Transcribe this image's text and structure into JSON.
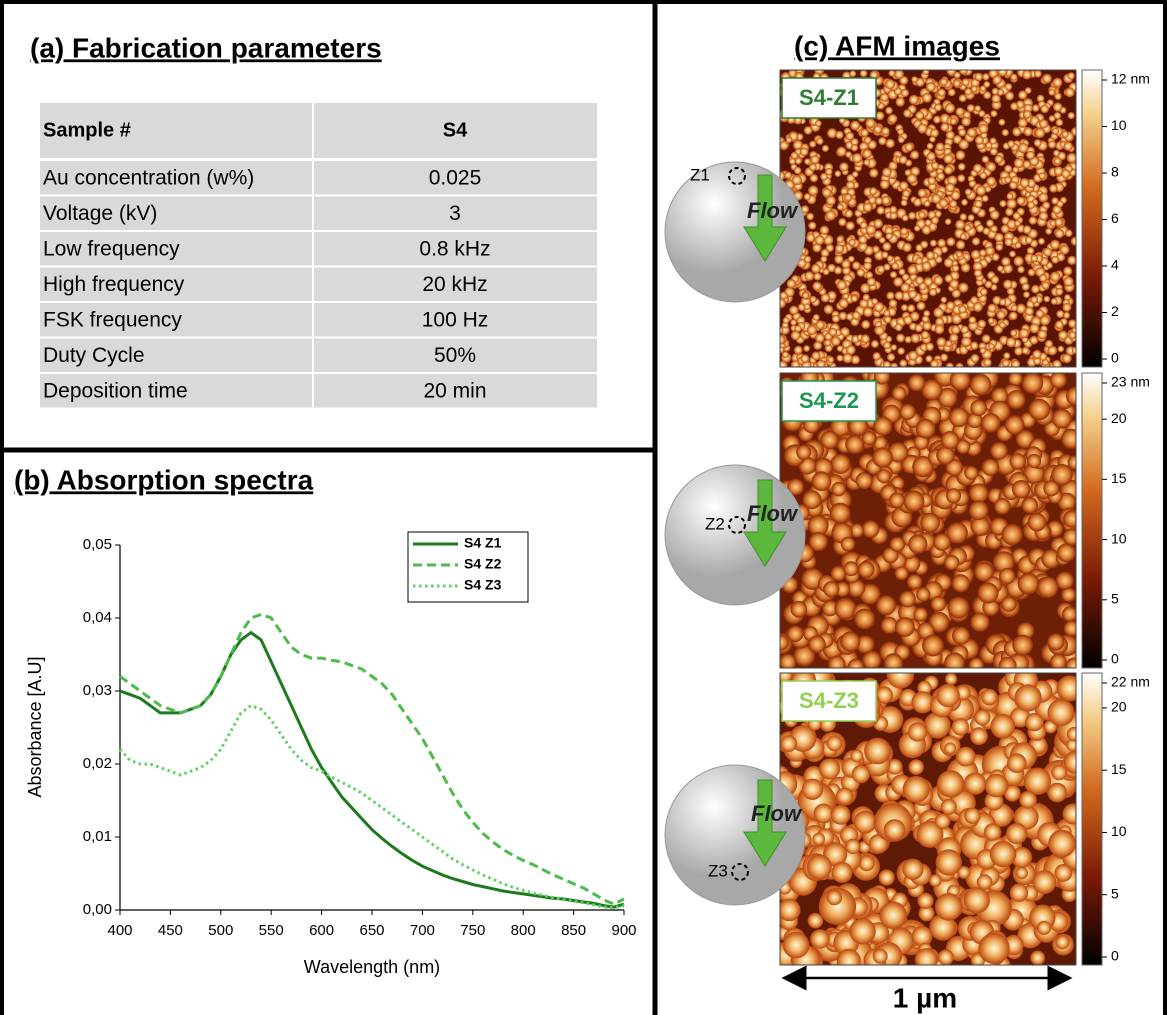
{
  "panel_a": {
    "title": "(a) Fabrication parameters",
    "header": [
      "Sample #",
      "S4"
    ],
    "rows": [
      [
        "Au concentration (w%)",
        "0.025"
      ],
      [
        "Voltage (kV)",
        "3"
      ],
      [
        "Low frequency",
        "0.8 kHz"
      ],
      [
        "High frequency",
        "20 kHz"
      ],
      [
        "FSK frequency",
        "100 Hz"
      ],
      [
        "Duty Cycle",
        "50%"
      ],
      [
        "Deposition time",
        "20 min"
      ]
    ]
  },
  "chart_data": {
    "type": "line",
    "title": "(b) Absorption spectra",
    "x_label": "Wavelength (nm)",
    "y_label": "Absorbance [A.U]",
    "x": [
      400,
      410,
      420,
      430,
      440,
      450,
      460,
      470,
      480,
      490,
      500,
      510,
      520,
      530,
      540,
      550,
      560,
      570,
      580,
      590,
      600,
      610,
      620,
      630,
      640,
      650,
      660,
      670,
      680,
      690,
      700,
      710,
      720,
      730,
      740,
      750,
      760,
      770,
      780,
      790,
      800,
      810,
      820,
      830,
      840,
      850,
      860,
      870,
      880,
      890,
      900
    ],
    "series": [
      {
        "name": "S4 Z1",
        "color": "#1e7a1e",
        "dash": "solid",
        "values": [
          0.03,
          0.0295,
          0.029,
          0.028,
          0.027,
          0.027,
          0.027,
          0.0275,
          0.028,
          0.0295,
          0.032,
          0.035,
          0.037,
          0.038,
          0.037,
          0.034,
          0.031,
          0.028,
          0.025,
          0.022,
          0.0195,
          0.0175,
          0.0155,
          0.014,
          0.0125,
          0.011,
          0.0098,
          0.0087,
          0.0077,
          0.0068,
          0.006,
          0.0054,
          0.0048,
          0.0043,
          0.0039,
          0.0035,
          0.0032,
          0.0029,
          0.0026,
          0.0024,
          0.0022,
          0.002,
          0.0018,
          0.0016,
          0.0015,
          0.0013,
          0.0011,
          0.0009,
          0.0006,
          0.0004,
          0.0008
        ]
      },
      {
        "name": "S4 Z2",
        "color": "#4cbb4c",
        "dash": "dashed",
        "values": [
          0.032,
          0.031,
          0.03,
          0.029,
          0.028,
          0.0275,
          0.027,
          0.0275,
          0.028,
          0.0295,
          0.032,
          0.035,
          0.038,
          0.04,
          0.0405,
          0.04,
          0.038,
          0.036,
          0.035,
          0.0345,
          0.0345,
          0.0342,
          0.034,
          0.0335,
          0.033,
          0.032,
          0.031,
          0.0295,
          0.0275,
          0.0255,
          0.0235,
          0.021,
          0.0185,
          0.016,
          0.0138,
          0.012,
          0.0105,
          0.0093,
          0.0083,
          0.0075,
          0.0068,
          0.0062,
          0.0055,
          0.0048,
          0.0042,
          0.0036,
          0.003,
          0.0022,
          0.0014,
          0.0008,
          0.0015
        ]
      },
      {
        "name": "S4 Z3",
        "color": "#5fd35f",
        "dash": "dotted",
        "values": [
          0.022,
          0.0205,
          0.02,
          0.02,
          0.0195,
          0.019,
          0.0185,
          0.019,
          0.0195,
          0.0205,
          0.022,
          0.0245,
          0.027,
          0.028,
          0.0275,
          0.026,
          0.024,
          0.022,
          0.0205,
          0.0195,
          0.019,
          0.0182,
          0.0175,
          0.0168,
          0.016,
          0.015,
          0.014,
          0.013,
          0.012,
          0.011,
          0.01,
          0.009,
          0.008,
          0.007,
          0.0062,
          0.0055,
          0.0048,
          0.0042,
          0.0036,
          0.0031,
          0.0027,
          0.0023,
          0.002,
          0.0017,
          0.0014,
          0.0012,
          0.001,
          0.0007,
          0.0004,
          0.0003,
          0.0006
        ]
      }
    ],
    "xlim": [
      400,
      900
    ],
    "xticks": [
      400,
      450,
      500,
      550,
      600,
      650,
      700,
      750,
      800,
      850,
      900
    ],
    "ylim": [
      0,
      0.05
    ],
    "yticks": [
      {
        "value": 0,
        "label": "0,00"
      },
      {
        "value": 0.01,
        "label": "0,01"
      },
      {
        "value": 0.02,
        "label": "0,02"
      },
      {
        "value": 0.03,
        "label": "0,03"
      },
      {
        "value": 0.04,
        "label": "0,04"
      },
      {
        "value": 0.05,
        "label": "0,05"
      }
    ],
    "legend": "upper right"
  },
  "panel_c": {
    "title": "(c) AFM images",
    "images": [
      {
        "label": "S4-Z1",
        "zone": "Z1",
        "flow": "Flow",
        "colorbar": {
          "lim": [
            0,
            12
          ],
          "ticks": [
            0,
            2,
            4,
            6,
            8,
            10,
            {
              "value": 12,
              "label": "12 nm"
            }
          ]
        }
      },
      {
        "label": "S4-Z2",
        "zone": "Z2",
        "flow": "Flow",
        "colorbar": {
          "lim": [
            0,
            23
          ],
          "ticks": [
            0,
            5,
            10,
            15,
            20,
            {
              "value": 23,
              "label": "23 nm"
            }
          ]
        }
      },
      {
        "label": "S4-Z3",
        "zone": "Z3",
        "flow": "Flow",
        "colorbar": {
          "lim": [
            0,
            22
          ],
          "ticks": [
            0,
            5,
            10,
            15,
            20,
            {
              "value": 22,
              "label": "22 nm"
            }
          ]
        }
      }
    ],
    "scale_bar": "1 µm"
  }
}
